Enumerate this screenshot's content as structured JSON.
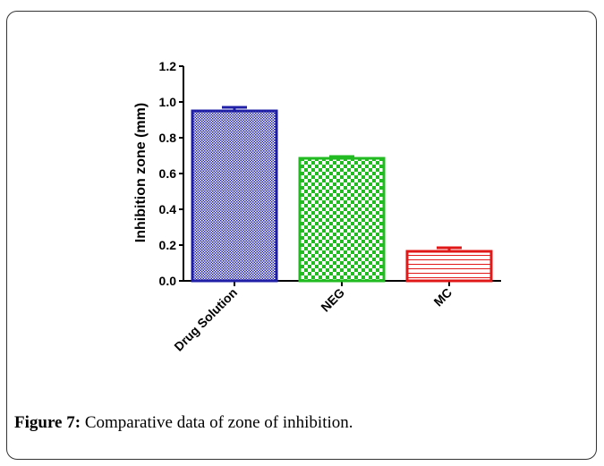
{
  "chart_data": {
    "type": "bar",
    "categories": [
      "Drug Solution",
      "NEG",
      "MC"
    ],
    "values": [
      0.95,
      0.685,
      0.165
    ],
    "errors": [
      0.02,
      0.01,
      0.02
    ],
    "ylabel": "Inhibition zone (mm)",
    "xlabel": "",
    "ylim": [
      0,
      1.2
    ],
    "yticks": [
      "0.0",
      "0.2",
      "0.4",
      "0.6",
      "0.8",
      "1.0",
      "1.2"
    ],
    "colors": [
      "#1f1fa8",
      "#22bb22",
      "#e01818"
    ],
    "grid": false
  },
  "caption": {
    "label": "Figure 7:",
    "text": " Comparative data of zone of inhibition."
  }
}
